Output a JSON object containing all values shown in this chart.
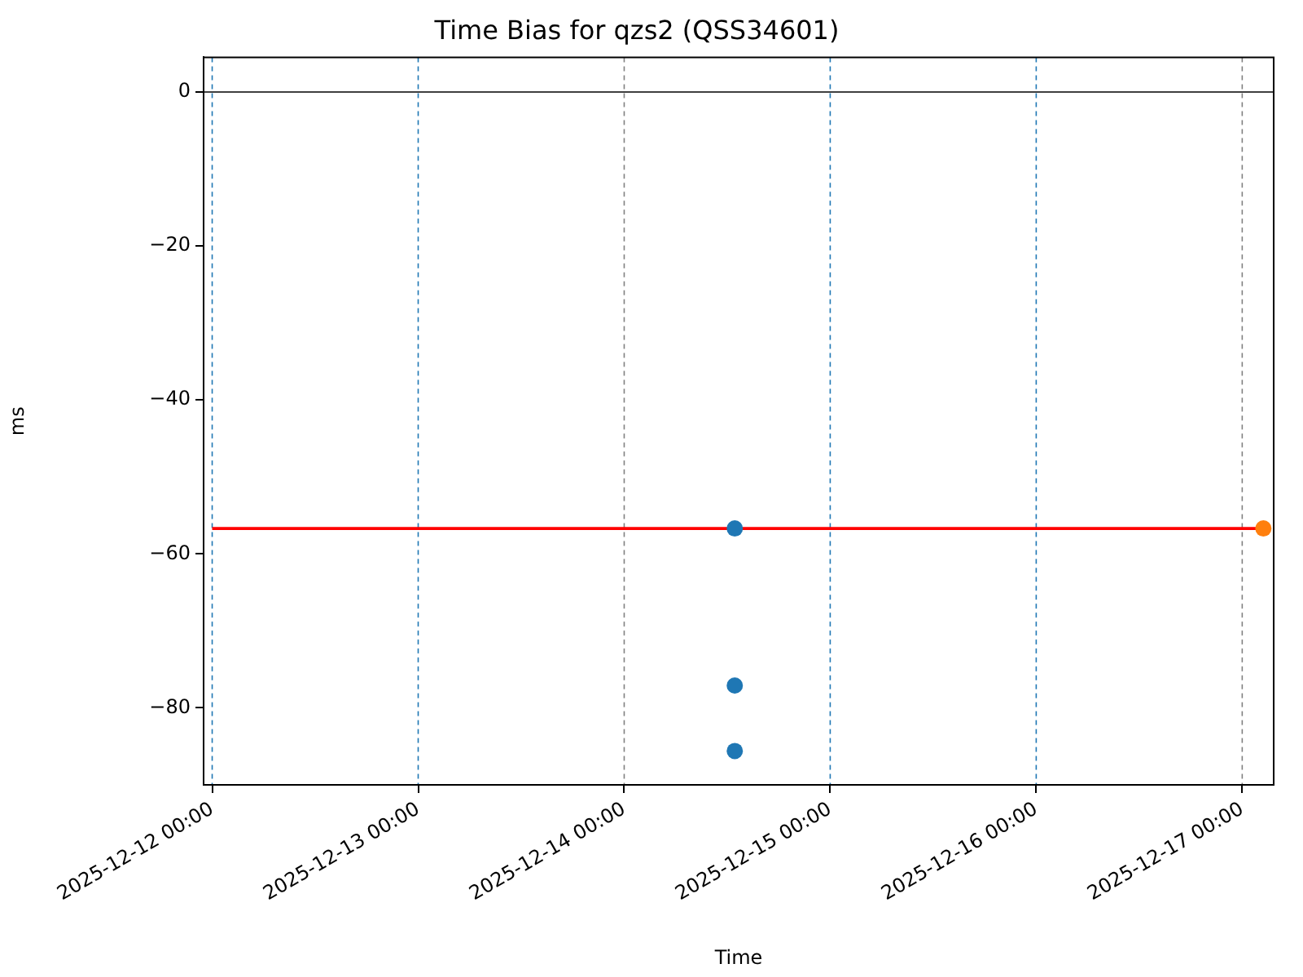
{
  "chart_data": {
    "type": "scatter",
    "title": "Time Bias for qzs2 (QSS34601)",
    "xlabel": "Time",
    "ylabel": "ms",
    "series": [
      {
        "color": "#1f77b4",
        "x": [
          "2025-12-14T12:53",
          "2025-12-14T12:53",
          "2025-12-14T12:53"
        ],
        "values": [
          -56.7,
          -77.1,
          -85.6
        ]
      },
      {
        "color": "#ff7f0e",
        "x": [
          "2025-12-17T02:28"
        ],
        "values": [
          -56.7
        ]
      },
      {
        "type": "line",
        "color": "#ff0000",
        "marker": "none",
        "x": [
          "2025-12-12T00:00",
          "2025-12-17T02:28"
        ],
        "values": [
          -56.7,
          -56.7
        ]
      }
    ],
    "xlim": [
      "2025-12-11T23:00",
      "2025-12-17T03:40"
    ],
    "xticks": [
      {
        "value": "2025-12-12",
        "label": "2025-12-12 00:00"
      },
      {
        "value": "2025-12-13",
        "label": "2025-12-13 00:00"
      },
      {
        "value": "2025-12-14",
        "label": "2025-12-14 00:00"
      },
      {
        "value": "2025-12-15",
        "label": "2025-12-15 00:00"
      },
      {
        "value": "2025-12-16",
        "label": "2025-12-16 00:00"
      },
      {
        "value": "2025-12-17",
        "label": "2025-12-17 00:00"
      }
    ],
    "ylim": [
      -90,
      4.5
    ],
    "yticks": [
      0,
      -20,
      -40,
      -60,
      -80
    ],
    "ref_lines": [
      {
        "axis": "y",
        "value": 0,
        "color": "#000000",
        "line_style": "solid"
      },
      {
        "axis": "x",
        "value": "2025-12-12",
        "color": "#1f77b4",
        "line_style": "dashed"
      },
      {
        "axis": "x",
        "value": "2025-12-13",
        "color": "#1f77b4",
        "line_style": "dashed"
      },
      {
        "axis": "x",
        "value": "2025-12-14",
        "color": "#808080",
        "line_style": "dashed"
      },
      {
        "axis": "x",
        "value": "2025-12-15",
        "color": "#1f77b4",
        "line_style": "dashed"
      },
      {
        "axis": "x",
        "value": "2025-12-16",
        "color": "#1f77b4",
        "line_style": "dashed"
      },
      {
        "axis": "x",
        "value": "2025-12-17",
        "color": "#808080",
        "line_style": "dashed"
      }
    ],
    "grid": false,
    "legend": false,
    "marker": "circle"
  }
}
